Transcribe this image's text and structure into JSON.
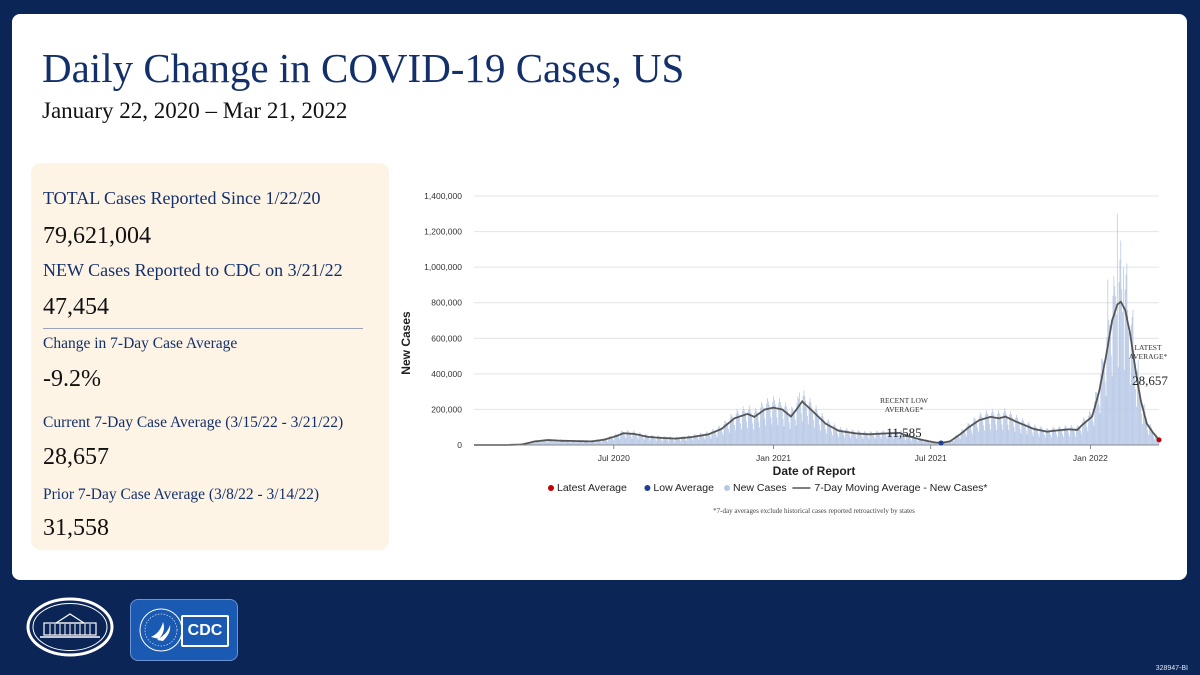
{
  "header": {
    "title": "Daily Change in COVID-19 Cases, US",
    "date_range": "January 22, 2020 – Mar 21, 2022"
  },
  "stats": {
    "total_label": "TOTAL Cases Reported Since 1/22/20",
    "total_value": "79,621,004",
    "new_label": "NEW Cases Reported to CDC on 3/21/22",
    "new_value": "47,454",
    "change_label": "Change in 7-Day Case Average",
    "change_value": "-9.2%",
    "current_label": "Current 7-Day Case Average (3/15/22 - 3/21/22)",
    "current_value": "28,657",
    "prior_label": "Prior 7-Day Case Average (3/8/22 - 3/14/22)",
    "prior_value": "31,558"
  },
  "logos": {
    "white_house_icon": "white-house-seal-icon",
    "cdc_label": "CDC",
    "cdc_icon": "hhs-eagle-icon"
  },
  "doc_id": "328947-BI",
  "colors": {
    "navy": "#0c2557",
    "title_blue": "#14306b",
    "bar_fill": "#b7c8e6",
    "line": "#555555",
    "latest_dot": "#c00000",
    "low_dot": "#1f3f99"
  },
  "chart_data": {
    "type": "bar",
    "title": "",
    "xlabel": "Date of Report",
    "ylabel": "New Cases",
    "ylim": [
      0,
      1400000
    ],
    "yticks": [
      0,
      200000,
      400000,
      600000,
      800000,
      1000000,
      1200000,
      1400000
    ],
    "ytick_labels": [
      "0",
      "200,000",
      "400,000",
      "600,000",
      "800,000",
      "1,000,000",
      "1,200,000",
      "1,400,000"
    ],
    "xticks": [
      {
        "day": 161,
        "label": "Jul 2020"
      },
      {
        "day": 345,
        "label": "Jan 2021"
      },
      {
        "day": 526,
        "label": "Jul 2021"
      },
      {
        "day": 710,
        "label": "Jan 2022"
      }
    ],
    "x_range": [
      0,
      789
    ],
    "start_date": "2020-01-22",
    "end_date": "2022-03-21",
    "moving_average_keypoints": [
      [
        0,
        0
      ],
      [
        38,
        0
      ],
      [
        55,
        3000
      ],
      [
        70,
        20000
      ],
      [
        85,
        28000
      ],
      [
        100,
        24000
      ],
      [
        120,
        22000
      ],
      [
        135,
        20000
      ],
      [
        150,
        30000
      ],
      [
        165,
        52000
      ],
      [
        172,
        66000
      ],
      [
        185,
        62000
      ],
      [
        200,
        46000
      ],
      [
        215,
        40000
      ],
      [
        232,
        36000
      ],
      [
        250,
        44000
      ],
      [
        270,
        60000
      ],
      [
        285,
        90000
      ],
      [
        300,
        150000
      ],
      [
        315,
        175000
      ],
      [
        323,
        158000
      ],
      [
        335,
        200000
      ],
      [
        345,
        210000
      ],
      [
        355,
        200000
      ],
      [
        365,
        160000
      ],
      [
        370,
        190000
      ],
      [
        378,
        245000
      ],
      [
        390,
        190000
      ],
      [
        405,
        120000
      ],
      [
        420,
        80000
      ],
      [
        440,
        65000
      ],
      [
        455,
        60000
      ],
      [
        470,
        64000
      ],
      [
        490,
        68000
      ],
      [
        500,
        50000
      ],
      [
        515,
        30000
      ],
      [
        530,
        15000
      ],
      [
        538,
        11585
      ],
      [
        548,
        20000
      ],
      [
        560,
        60000
      ],
      [
        570,
        100000
      ],
      [
        582,
        140000
      ],
      [
        595,
        158000
      ],
      [
        605,
        150000
      ],
      [
        612,
        160000
      ],
      [
        625,
        130000
      ],
      [
        645,
        90000
      ],
      [
        660,
        75000
      ],
      [
        672,
        82000
      ],
      [
        685,
        88000
      ],
      [
        695,
        85000
      ],
      [
        700,
        110000
      ],
      [
        712,
        160000
      ],
      [
        720,
        300000
      ],
      [
        728,
        500000
      ],
      [
        735,
        700000
      ],
      [
        741,
        790000
      ],
      [
        745,
        805000
      ],
      [
        750,
        760000
      ],
      [
        756,
        620000
      ],
      [
        762,
        420000
      ],
      [
        768,
        250000
      ],
      [
        775,
        120000
      ],
      [
        782,
        70000
      ],
      [
        789,
        28657
      ]
    ],
    "daily_spikes": [
      [
        375,
        295000
      ],
      [
        730,
        930000
      ],
      [
        736,
        840000
      ],
      [
        741,
        1300000
      ],
      [
        745,
        1150000
      ],
      [
        748,
        1000000
      ],
      [
        752,
        1020000
      ],
      [
        759,
        760000
      ],
      [
        765,
        480000
      ]
    ],
    "annotations": {
      "recent_low_label": "RECENT LOW AVERAGE*",
      "recent_low_value": "11,585",
      "latest_label": "LATEST AVERAGE*",
      "latest_value": "28,657"
    },
    "legend": [
      {
        "label": "Latest Average",
        "marker": "dot",
        "color": "#c00000"
      },
      {
        "label": "Low Average",
        "marker": "dot",
        "color": "#1f3f99"
      },
      {
        "label": "New Cases",
        "marker": "dot",
        "color": "#b7c8e6"
      },
      {
        "label": "7-Day Moving Average - New Cases*",
        "marker": "line",
        "color": "#555555"
      }
    ],
    "legend_position": "bottom",
    "footnote": "*7-day averages exclude historical cases reported retroactively by states",
    "grid": true
  }
}
